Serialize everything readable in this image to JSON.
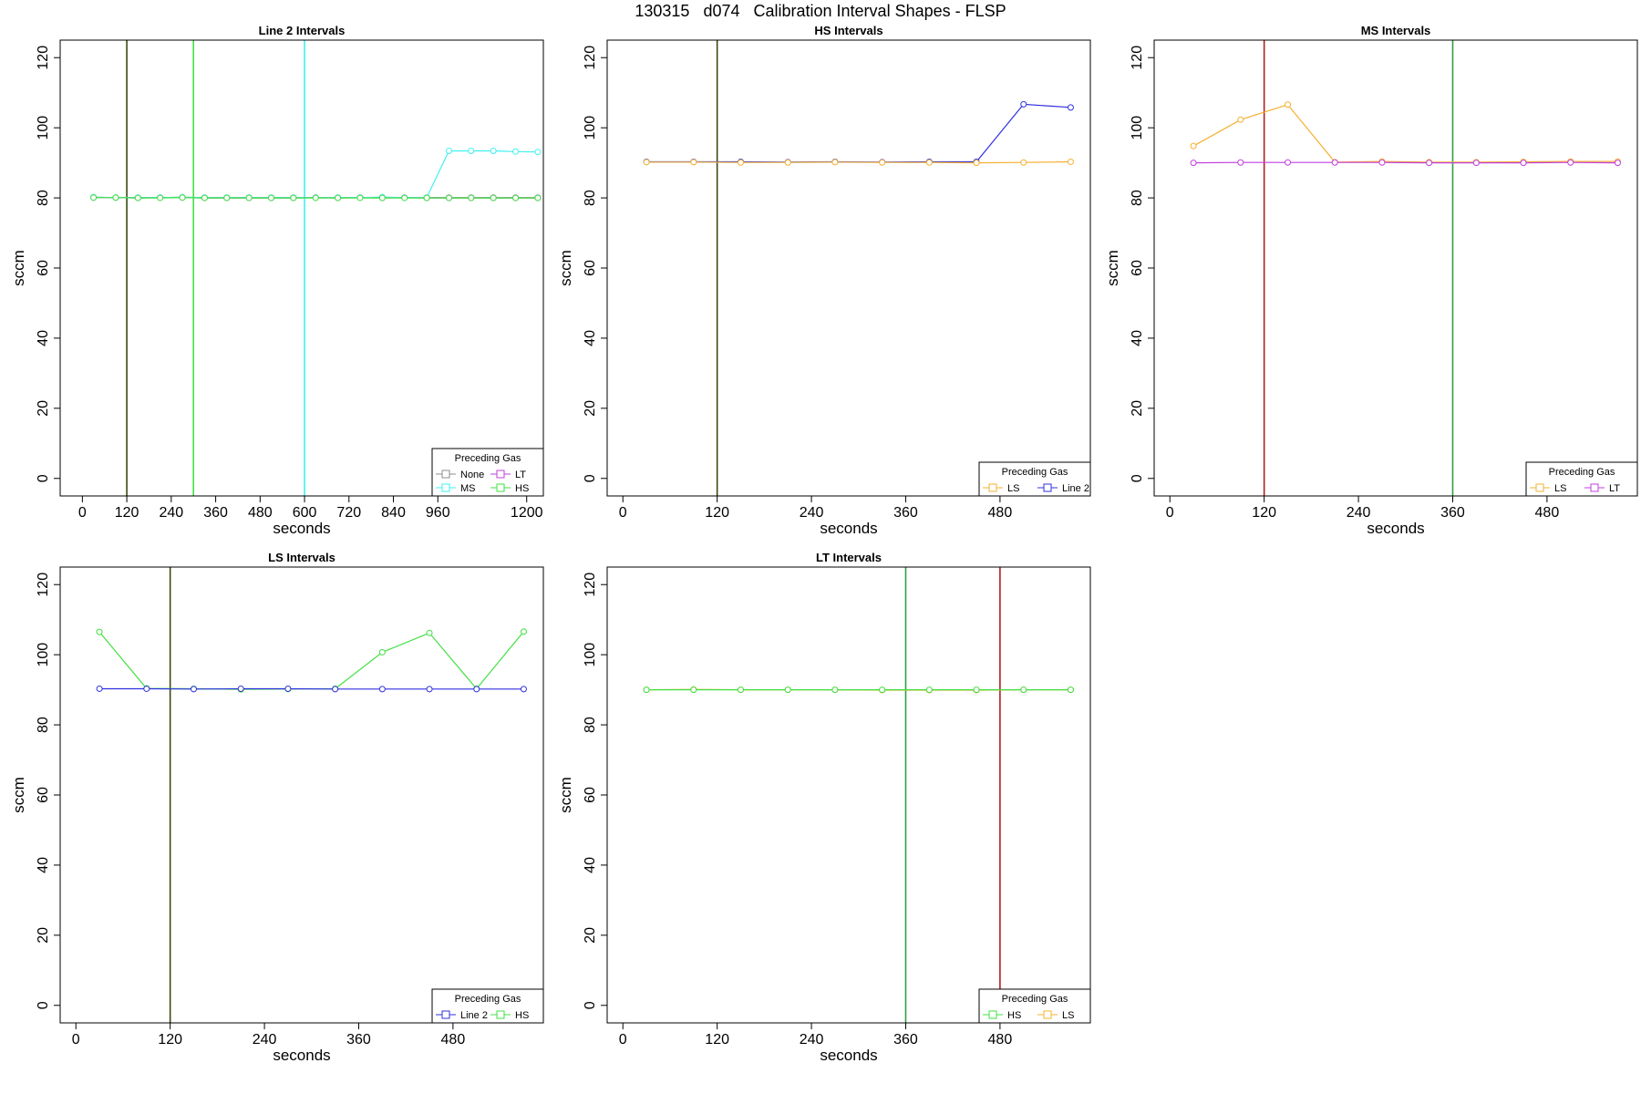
{
  "figure_title": "130315   d074   Calibration Interval Shapes - FLSP",
  "legend_title": "Preceding Gas",
  "colors": {
    "None": "#8c8c8c",
    "LT": "#c040e0",
    "MS": "#40f0f0",
    "HS": "#40e040",
    "LS": "#f5b030",
    "Line 2": "#3030e0",
    "vline_dark": "#3a4a10",
    "vline_green": "#30a040",
    "vline_red": "#b02020",
    "frame": "#000000"
  },
  "chart_data": [
    {
      "type": "line",
      "title": "Line 2 Intervals",
      "xlabel": "seconds",
      "ylabel": "sccm",
      "xlim": [
        -60,
        1245
      ],
      "ylim": [
        -5,
        125
      ],
      "xticks": [
        0,
        120,
        240,
        360,
        480,
        600,
        720,
        840,
        960,
        1200
      ],
      "yticks": [
        0,
        20,
        40,
        60,
        80,
        100,
        120
      ],
      "grid": false,
      "legend_position": "bottom-right",
      "legend_columns": 2,
      "legend_entries": [
        "None",
        "LT",
        "MS",
        "HS"
      ],
      "vlines": [
        {
          "x": 120,
          "color": "vline_dark"
        },
        {
          "x": 300,
          "color": "HS"
        },
        {
          "x": 600,
          "color": "MS"
        }
      ],
      "series": [
        {
          "name": "None",
          "x": [
            30,
            90,
            150,
            210,
            270,
            330,
            390,
            450,
            510,
            570,
            630,
            690,
            750,
            810,
            870,
            930,
            990,
            1050,
            1110,
            1170,
            1230
          ],
          "y": [
            80.2,
            80.1,
            80.1,
            80.1,
            80.2,
            80.1,
            80.1,
            80.1,
            80.1,
            80.1,
            80.1,
            80.1,
            80.1,
            80.2,
            80.1,
            80.1,
            80.1,
            80.1,
            80.1,
            80.1,
            80.1
          ]
        },
        {
          "name": "LT",
          "x": [
            30,
            90,
            150,
            210,
            270,
            330,
            390,
            450,
            510,
            570,
            630,
            690,
            750,
            810,
            870,
            930,
            990,
            1050,
            1110,
            1170,
            1230
          ],
          "y": [
            80.1,
            80.1,
            80.0,
            80.1,
            80.1,
            80.0,
            80.0,
            80.0,
            80.0,
            80.0,
            80.1,
            80.0,
            80.1,
            80.0,
            80.1,
            80.0,
            80.0,
            80.0,
            80.0,
            80.0,
            80.0
          ]
        },
        {
          "name": "MS",
          "x": [
            30,
            90,
            150,
            210,
            270,
            330,
            390,
            450,
            510,
            570,
            630,
            690,
            750,
            810,
            870,
            930,
            990,
            1050,
            1110,
            1170,
            1230
          ],
          "y": [
            80.2,
            80.1,
            80.1,
            80.1,
            80.2,
            80.1,
            80.1,
            80.1,
            80.1,
            80.1,
            80.1,
            80.1,
            80.1,
            80.2,
            80.1,
            80.1,
            93.4,
            93.4,
            93.4,
            93.2,
            93.1
          ]
        },
        {
          "name": "HS",
          "x": [
            30,
            90,
            150,
            210,
            270,
            330,
            390,
            450,
            510,
            570,
            630,
            690,
            750,
            810,
            870,
            930,
            990,
            1050,
            1110,
            1170,
            1230
          ],
          "y": [
            80.1,
            80.1,
            80.0,
            80.0,
            80.1,
            80.0,
            80.0,
            80.0,
            80.0,
            80.0,
            80.0,
            80.0,
            80.0,
            80.0,
            80.0,
            80.0,
            80.0,
            80.0,
            80.0,
            80.0,
            80.0
          ]
        }
      ]
    },
    {
      "type": "line",
      "title": "HS Intervals",
      "xlabel": "seconds",
      "ylabel": "sccm",
      "xlim": [
        -20,
        595
      ],
      "ylim": [
        -5,
        125
      ],
      "xticks": [
        0,
        120,
        240,
        360,
        480
      ],
      "yticks": [
        0,
        20,
        40,
        60,
        80,
        100,
        120
      ],
      "grid": false,
      "legend_position": "bottom-right",
      "legend_columns": 2,
      "legend_entries": [
        "LS",
        "Line 2"
      ],
      "vlines": [
        {
          "x": 120,
          "color": "vline_dark"
        }
      ],
      "series": [
        {
          "name": "Line 2",
          "x": [
            30,
            90,
            150,
            210,
            270,
            330,
            390,
            450,
            510,
            570
          ],
          "y": [
            90.3,
            90.3,
            90.3,
            90.2,
            90.3,
            90.2,
            90.3,
            90.3,
            106.7,
            105.8
          ]
        },
        {
          "name": "LS",
          "x": [
            30,
            90,
            150,
            210,
            270,
            330,
            390,
            450,
            510,
            570
          ],
          "y": [
            90.2,
            90.2,
            90.1,
            90.1,
            90.2,
            90.1,
            90.1,
            90.0,
            90.1,
            90.3
          ]
        }
      ]
    },
    {
      "type": "line",
      "title": "MS Intervals",
      "xlabel": "seconds",
      "ylabel": "sccm",
      "xlim": [
        -20,
        595
      ],
      "ylim": [
        -5,
        125
      ],
      "xticks": [
        0,
        120,
        240,
        360,
        480
      ],
      "yticks": [
        0,
        20,
        40,
        60,
        80,
        100,
        120
      ],
      "grid": false,
      "legend_position": "bottom-right",
      "legend_columns": 2,
      "legend_entries": [
        "LS",
        "LT"
      ],
      "vlines": [
        {
          "x": 120,
          "color": "vline_red"
        },
        {
          "x": 360,
          "color": "vline_green"
        }
      ],
      "series": [
        {
          "name": "LS",
          "x": [
            30,
            90,
            150,
            210,
            270,
            330,
            390,
            450,
            510,
            570
          ],
          "y": [
            94.8,
            102.3,
            106.6,
            90.2,
            90.4,
            90.2,
            90.2,
            90.3,
            90.4,
            90.4
          ]
        },
        {
          "name": "LT",
          "x": [
            30,
            90,
            150,
            210,
            270,
            330,
            390,
            450,
            510,
            570
          ],
          "y": [
            90.0,
            90.1,
            90.1,
            90.1,
            90.1,
            90.0,
            90.0,
            90.0,
            90.1,
            90.0
          ]
        }
      ]
    },
    {
      "type": "line",
      "title": "LS Intervals",
      "xlabel": "seconds",
      "ylabel": "sccm",
      "xlim": [
        -20,
        595
      ],
      "ylim": [
        -5,
        125
      ],
      "xticks": [
        0,
        120,
        240,
        360,
        480
      ],
      "yticks": [
        0,
        20,
        40,
        60,
        80,
        100,
        120
      ],
      "grid": false,
      "legend_position": "bottom-right",
      "legend_columns": 2,
      "legend_entries": [
        "Line 2",
        "HS"
      ],
      "vlines": [
        {
          "x": 120,
          "color": "vline_dark"
        }
      ],
      "series": [
        {
          "name": "HS",
          "x": [
            30,
            90,
            150,
            210,
            270,
            330,
            390,
            450,
            510,
            570
          ],
          "y": [
            106.5,
            90.4,
            90.3,
            90.1,
            90.2,
            90.3,
            100.7,
            106.2,
            90.3,
            106.6
          ]
        },
        {
          "name": "Line 2",
          "x": [
            30,
            90,
            150,
            210,
            270,
            330,
            390,
            450,
            510,
            570
          ],
          "y": [
            90.3,
            90.3,
            90.2,
            90.3,
            90.3,
            90.2,
            90.2,
            90.2,
            90.2,
            90.2
          ]
        }
      ]
    },
    {
      "type": "line",
      "title": "LT Intervals",
      "xlabel": "seconds",
      "ylabel": "sccm",
      "xlim": [
        -20,
        595
      ],
      "ylim": [
        -5,
        125
      ],
      "xticks": [
        0,
        120,
        240,
        360,
        480
      ],
      "yticks": [
        0,
        20,
        40,
        60,
        80,
        100,
        120
      ],
      "grid": false,
      "legend_position": "bottom-right",
      "legend_columns": 2,
      "legend_entries": [
        "HS",
        "LS"
      ],
      "vlines": [
        {
          "x": 360,
          "color": "vline_green"
        },
        {
          "x": 480,
          "color": "vline_red"
        }
      ],
      "series": [
        {
          "name": "LS",
          "x": [
            30,
            90,
            150,
            210,
            270,
            330,
            390,
            450,
            510,
            570
          ],
          "y": [
            90.0,
            90.1,
            90.0,
            90.0,
            90.0,
            89.9,
            89.9,
            89.9,
            90.0,
            90.0
          ]
        },
        {
          "name": "HS",
          "x": [
            30,
            90,
            150,
            210,
            270,
            330,
            390,
            450,
            510,
            570
          ],
          "y": [
            90.0,
            90.0,
            90.0,
            90.0,
            90.0,
            90.0,
            90.0,
            90.0,
            90.0,
            90.0
          ]
        }
      ]
    }
  ]
}
